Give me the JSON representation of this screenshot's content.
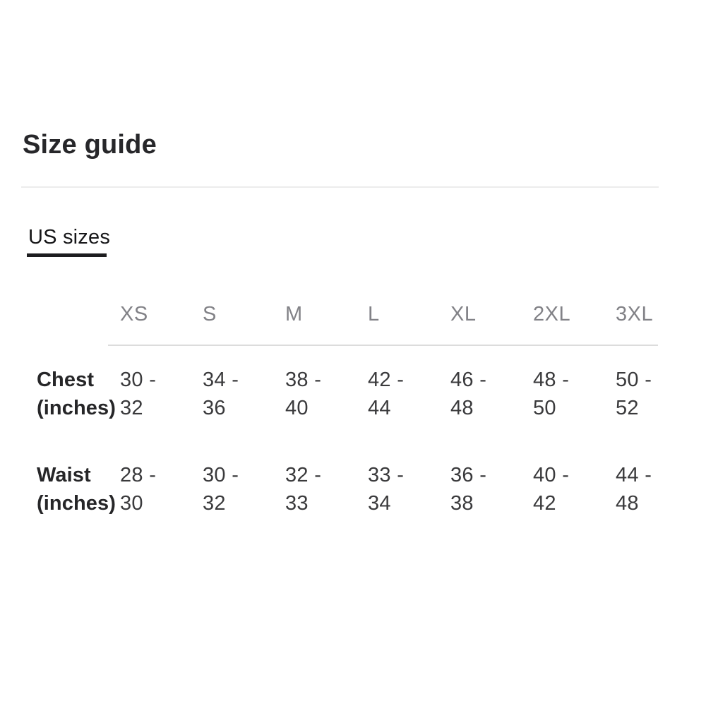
{
  "header": {
    "title": "Size guide"
  },
  "tabs": [
    {
      "label": "US sizes",
      "active": true
    }
  ],
  "table": {
    "columns": [
      "XS",
      "S",
      "M",
      "L",
      "XL",
      "2XL",
      "3XL"
    ],
    "rows": [
      {
        "label": "Chest (inches)",
        "values": [
          "30 - 32",
          "34 - 36",
          "38 - 40",
          "42 - 44",
          "46 - 48",
          "48 - 50",
          "50 - 52"
        ]
      },
      {
        "label": "Waist (inches)",
        "values": [
          "28 - 30",
          "30 - 32",
          "32 - 33",
          "33 - 34",
          "36 - 38",
          "40 - 42",
          "44 - 48"
        ]
      }
    ]
  },
  "colors": {
    "heading_text": "#27272a",
    "tab_text": "#161618",
    "tab_underline": "#1d1d1f",
    "column_header_text": "#828287",
    "body_text": "#3a3a3c",
    "top_divider": "#ececec",
    "header_divider": "#dcdcdc",
    "background": "#ffffff"
  }
}
